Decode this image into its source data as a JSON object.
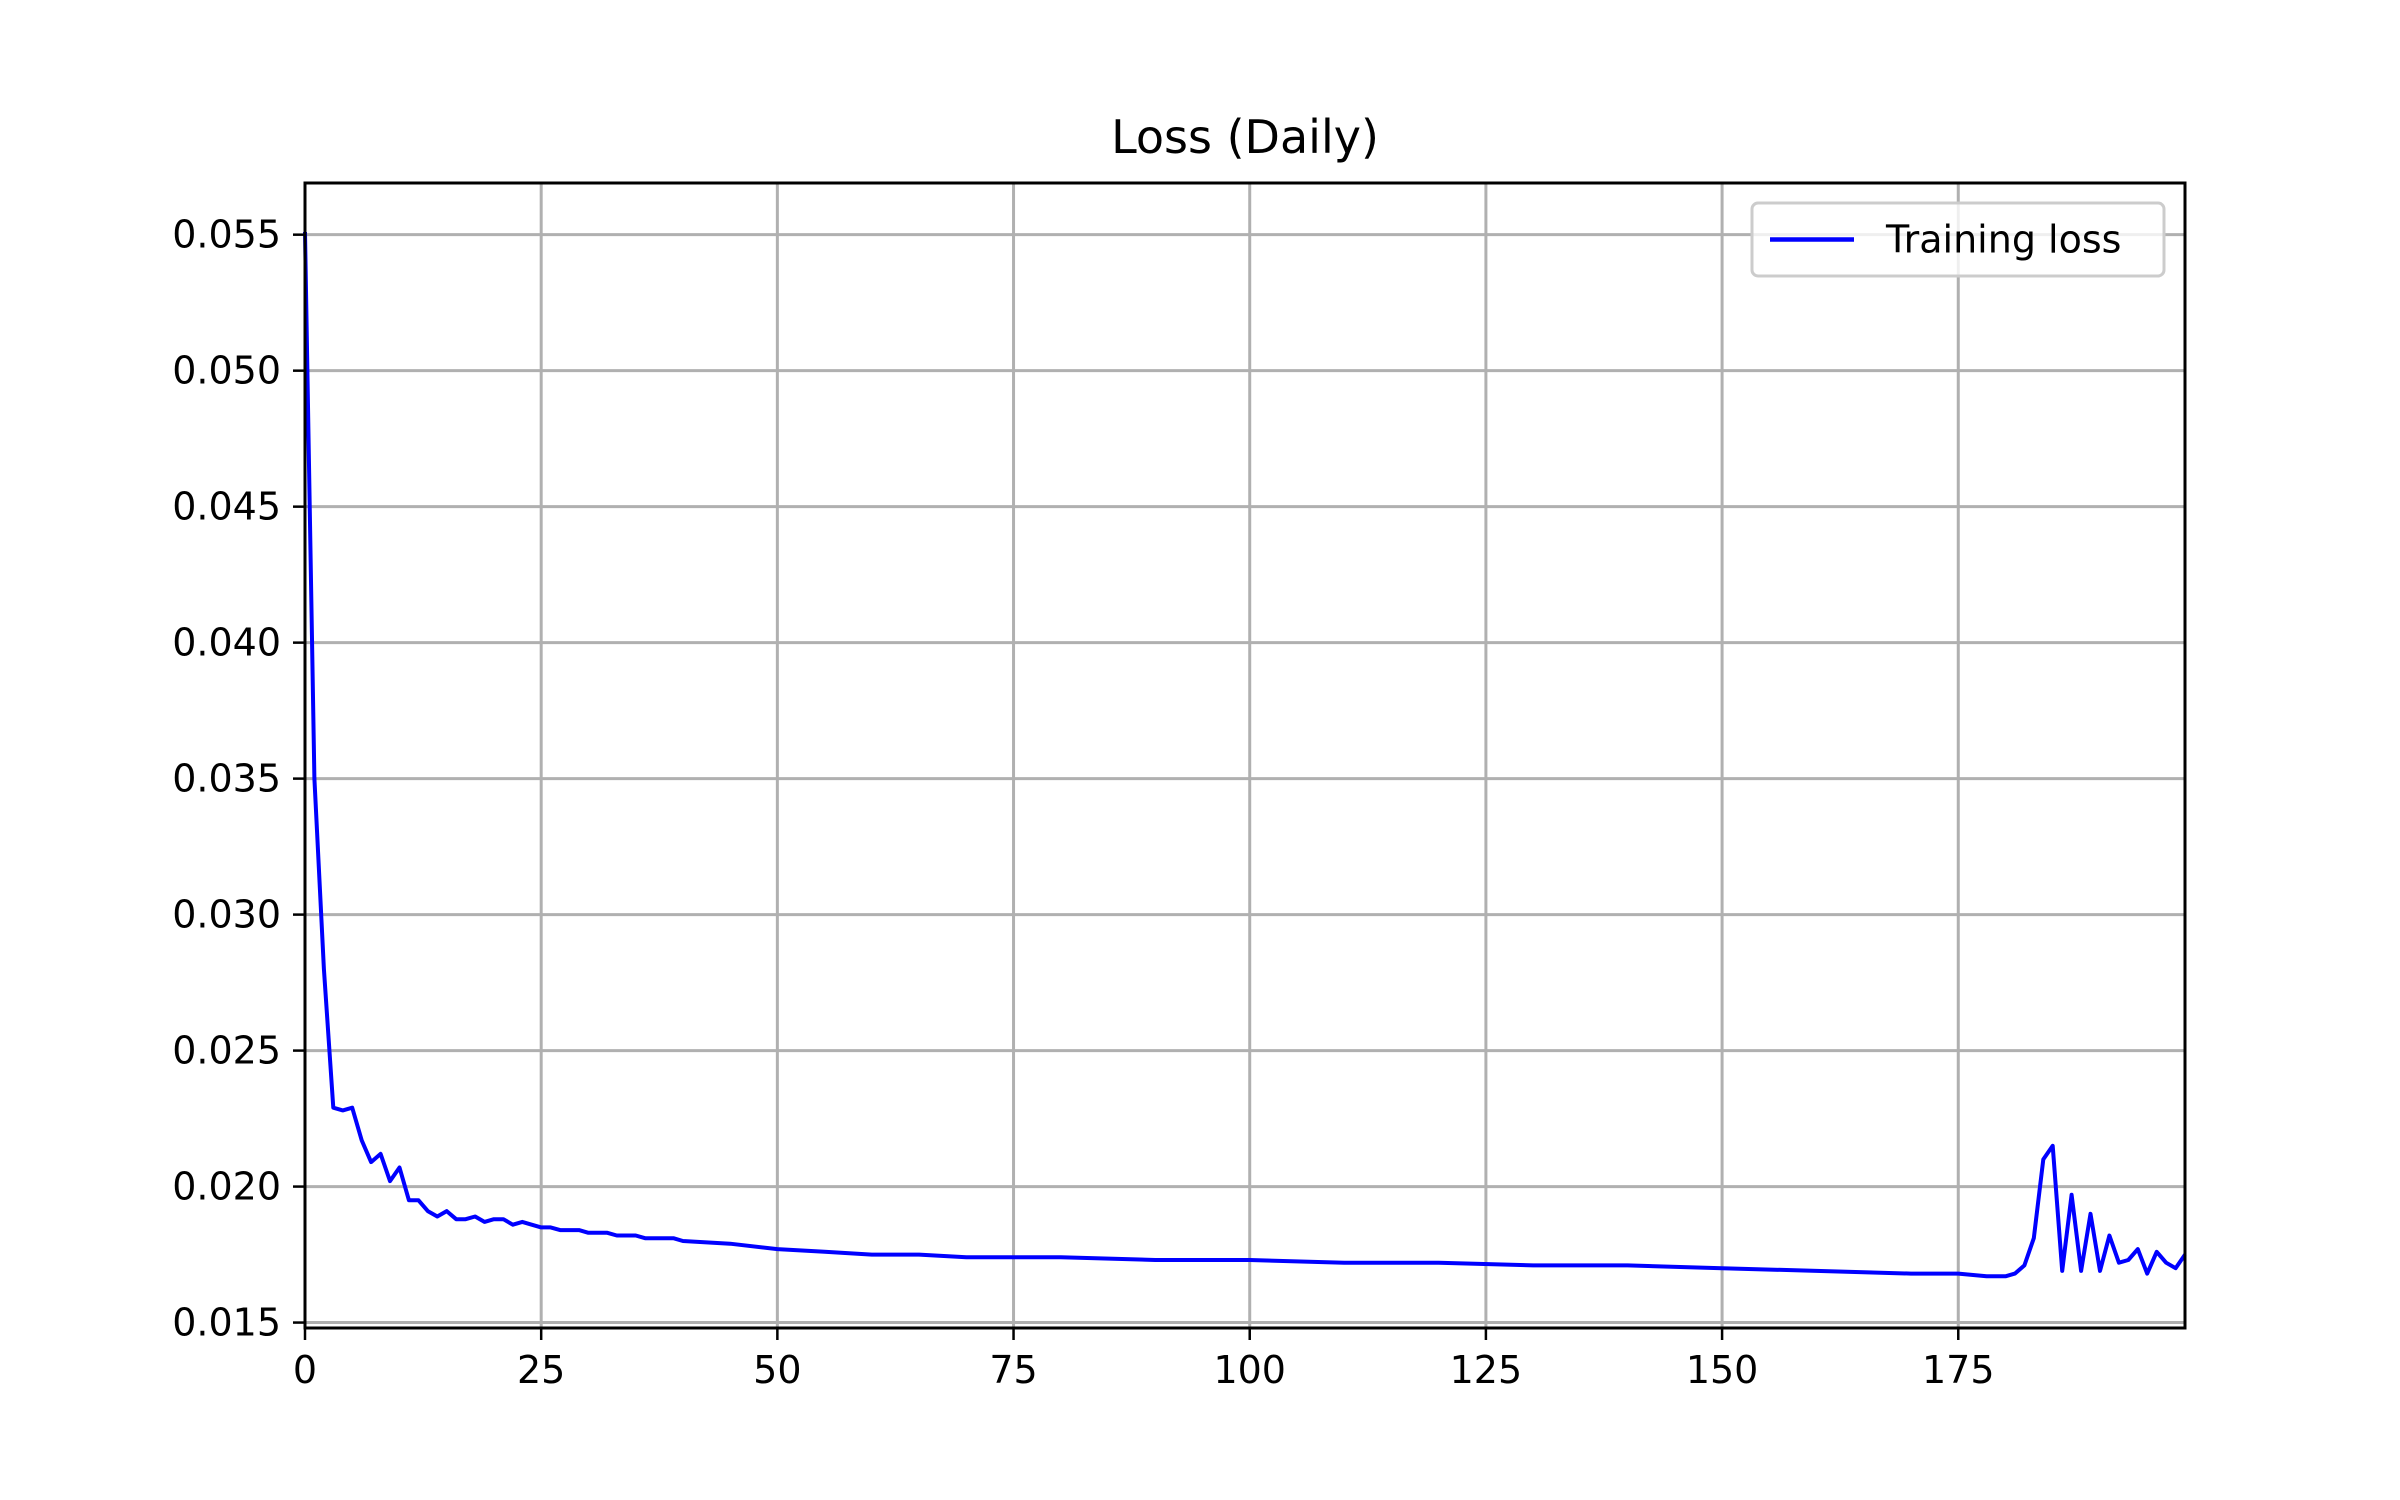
{
  "chart_data": {
    "type": "line",
    "title": "Loss (Daily)",
    "xlabel": "",
    "ylabel": "",
    "xlim": [
      0,
      199
    ],
    "ylim": [
      0.0148,
      0.0569
    ],
    "xticks": [
      0,
      25,
      50,
      75,
      100,
      125,
      150,
      175
    ],
    "xtick_labels": [
      "0",
      "25",
      "50",
      "75",
      "100",
      "125",
      "150",
      "175"
    ],
    "yticks": [
      0.015,
      0.02,
      0.025,
      0.03,
      0.035,
      0.04,
      0.045,
      0.05,
      0.055
    ],
    "ytick_labels": [
      "0.015",
      "0.020",
      "0.025",
      "0.030",
      "0.035",
      "0.040",
      "0.045",
      "0.050",
      "0.055"
    ],
    "grid": true,
    "legend_position": "top-right",
    "series": [
      {
        "name": "Training loss",
        "color": "#0000ff",
        "x": [
          0,
          1,
          2,
          3,
          4,
          5,
          6,
          7,
          8,
          9,
          10,
          11,
          12,
          13,
          14,
          15,
          16,
          17,
          18,
          19,
          20,
          21,
          22,
          23,
          24,
          25,
          26,
          27,
          28,
          29,
          30,
          31,
          32,
          33,
          34,
          35,
          36,
          37,
          38,
          39,
          40,
          45,
          50,
          55,
          60,
          65,
          70,
          75,
          80,
          90,
          100,
          110,
          120,
          130,
          140,
          150,
          160,
          170,
          175,
          178,
          179,
          180,
          181,
          182,
          183,
          184,
          185,
          186,
          187,
          188,
          189,
          190,
          191,
          192,
          193,
          194,
          195,
          196,
          197,
          198,
          199
        ],
        "y": [
          0.0551,
          0.035,
          0.028,
          0.0229,
          0.0228,
          0.0229,
          0.0217,
          0.0209,
          0.0212,
          0.0202,
          0.0207,
          0.0195,
          0.0195,
          0.0191,
          0.0189,
          0.0191,
          0.0188,
          0.0188,
          0.0189,
          0.0187,
          0.0188,
          0.0188,
          0.0186,
          0.0187,
          0.0186,
          0.0185,
          0.0185,
          0.0184,
          0.0184,
          0.0184,
          0.0183,
          0.0183,
          0.0183,
          0.0182,
          0.0182,
          0.0182,
          0.0181,
          0.0181,
          0.0181,
          0.0181,
          0.018,
          0.0179,
          0.0177,
          0.0176,
          0.0175,
          0.0175,
          0.0174,
          0.0174,
          0.0174,
          0.0173,
          0.0173,
          0.0172,
          0.0172,
          0.0171,
          0.0171,
          0.017,
          0.0169,
          0.0168,
          0.0168,
          0.0167,
          0.0167,
          0.0167,
          0.0168,
          0.0171,
          0.0181,
          0.021,
          0.0215,
          0.0169,
          0.0197,
          0.0169,
          0.019,
          0.0169,
          0.0182,
          0.0172,
          0.0173,
          0.0177,
          0.0168,
          0.0176,
          0.0172,
          0.017,
          0.0175
        ]
      }
    ]
  }
}
